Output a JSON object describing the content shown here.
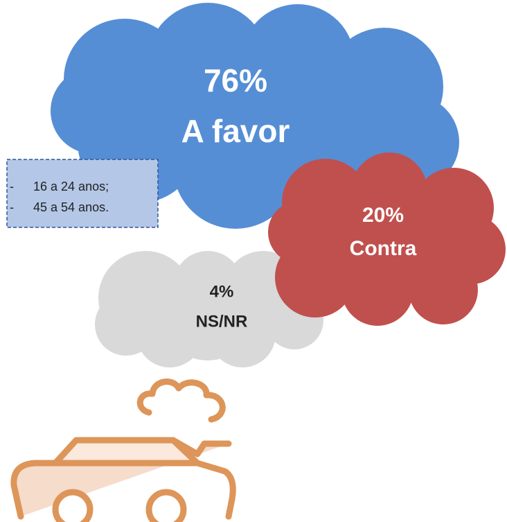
{
  "clouds": [
    {
      "value": "76%",
      "label": "A favor"
    },
    {
      "value": "20%",
      "label": "Contra"
    },
    {
      "value": "4%",
      "label": "NS/NR"
    }
  ],
  "note": {
    "bullet": "-",
    "items": [
      "16 a 24 anos;",
      "45 a 54 anos."
    ]
  }
}
